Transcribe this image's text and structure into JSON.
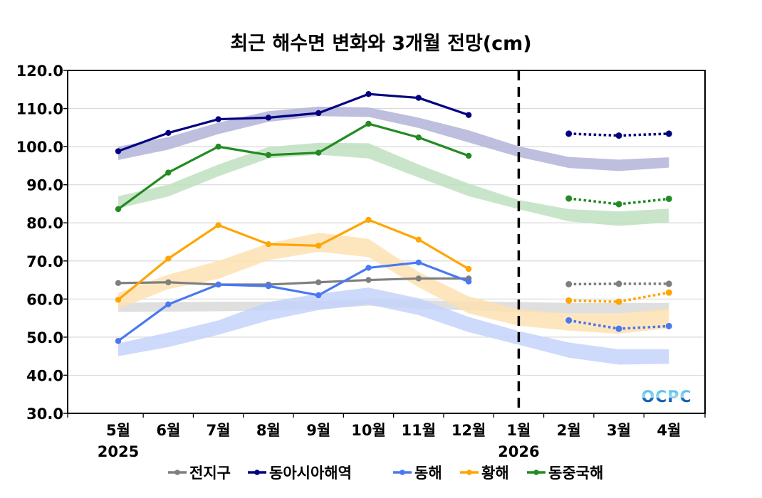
{
  "chart_data": {
    "type": "line",
    "title": "최근 해수면 변화와 3개월 전망(cm)",
    "xlabel": "",
    "ylabel": "",
    "ylim": [
      30,
      120
    ],
    "yticks": [
      "30.0",
      "40.0",
      "50.0",
      "60.0",
      "70.0",
      "80.0",
      "90.0",
      "100.0",
      "110.0",
      "120.0"
    ],
    "ytick_values": [
      30,
      40,
      50,
      60,
      70,
      80,
      90,
      100,
      110,
      120
    ],
    "categories": [
      "5월",
      "6월",
      "7월",
      "8월",
      "9월",
      "10월",
      "11월",
      "12월",
      "1월",
      "2월",
      "3월",
      "4월"
    ],
    "year_labels": [
      {
        "category": "5월",
        "label": "2025"
      },
      {
        "category": "1월",
        "label": "2026"
      }
    ],
    "grid": true,
    "forecast_divider_category": "1월",
    "legend_position": "bottom",
    "logo": "OCPC",
    "series": [
      {
        "name": "전지구",
        "color": "#7f7f7f",
        "band_color": "#d9d9d9",
        "observed": [
          64.2,
          64.4,
          63.8,
          63.8,
          64.4,
          65.0,
          65.4,
          65.4,
          null,
          null,
          null,
          null
        ],
        "forecast": [
          null,
          null,
          null,
          null,
          null,
          null,
          null,
          null,
          null,
          63.9,
          64.0,
          64.0
        ],
        "band_upper": [
          59.0,
          59.2,
          59.3,
          59.3,
          59.5,
          59.7,
          59.7,
          59.4,
          59.2,
          59.0,
          59.0,
          59.0
        ],
        "band_lower": [
          56.6,
          56.7,
          56.8,
          57.0,
          57.3,
          58.3,
          57.5,
          57.0,
          56.6,
          56.2,
          56.2,
          57.0
        ]
      },
      {
        "name": "동아시아해역",
        "color": "#000080",
        "band_color": "#b3b3d9",
        "observed": [
          98.8,
          103.6,
          107.2,
          107.6,
          108.8,
          113.8,
          112.8,
          108.3,
          null,
          null,
          null,
          null
        ],
        "forecast": [
          null,
          null,
          null,
          null,
          null,
          null,
          null,
          null,
          null,
          103.4,
          102.9,
          103.4
        ],
        "band_upper": [
          100.0,
          102.5,
          106.3,
          109.3,
          110.5,
          110.3,
          107.6,
          104.3,
          100.1,
          97.3,
          96.6,
          97.2
        ],
        "band_lower": [
          96.5,
          99.2,
          103.3,
          106.5,
          108.0,
          107.8,
          104.9,
          101.1,
          97.3,
          94.4,
          93.6,
          94.5
        ]
      },
      {
        "name": "동해",
        "color": "#4a78f0",
        "band_color": "#c5d3fa",
        "observed": [
          49.0,
          58.6,
          63.8,
          63.4,
          61.0,
          68.2,
          69.6,
          64.6,
          null,
          null,
          null,
          null
        ],
        "forecast": [
          null,
          null,
          null,
          null,
          null,
          null,
          null,
          null,
          null,
          54.4,
          52.2,
          52.9
        ],
        "band_upper": [
          48.4,
          51.2,
          54.4,
          59.2,
          61.4,
          63.0,
          60.2,
          55.3,
          51.6,
          48.6,
          46.8,
          46.8
        ],
        "band_lower": [
          45.0,
          47.4,
          50.6,
          54.4,
          57.1,
          58.6,
          55.8,
          51.3,
          48.0,
          44.6,
          42.8,
          43.0
        ]
      },
      {
        "name": "황해",
        "color": "#ffa500",
        "band_color": "#fde2b3",
        "observed": [
          59.8,
          70.6,
          79.4,
          74.4,
          74.0,
          80.8,
          75.6,
          67.9,
          null,
          null,
          null,
          null
        ],
        "forecast": [
          null,
          null,
          null,
          null,
          null,
          null,
          null,
          null,
          null,
          59.6,
          59.3,
          61.7
        ],
        "band_upper": [
          61.6,
          66.4,
          70.0,
          74.6,
          77.4,
          75.8,
          67.1,
          60.7,
          57.3,
          56.2,
          56.2,
          57.6
        ],
        "band_lower": [
          57.4,
          62.6,
          65.3,
          70.2,
          72.4,
          71.0,
          63.1,
          56.2,
          53.0,
          51.7,
          50.9,
          52.3
        ]
      },
      {
        "name": "동중국해",
        "color": "#228b22",
        "band_color": "#bfe0bf",
        "observed": [
          83.6,
          93.2,
          100.0,
          97.8,
          98.4,
          106.0,
          102.4,
          97.6,
          null,
          null,
          null,
          null
        ],
        "forecast": [
          null,
          null,
          null,
          null,
          null,
          null,
          null,
          null,
          null,
          86.4,
          84.9,
          86.3
        ],
        "band_upper": [
          87.0,
          90.0,
          95.3,
          99.9,
          101.0,
          100.9,
          95.3,
          90.3,
          86.0,
          83.6,
          83.0,
          83.7
        ],
        "band_lower": [
          83.8,
          86.9,
          92.2,
          96.9,
          97.9,
          96.9,
          91.9,
          87.0,
          83.6,
          80.4,
          79.2,
          80.1
        ]
      }
    ]
  }
}
